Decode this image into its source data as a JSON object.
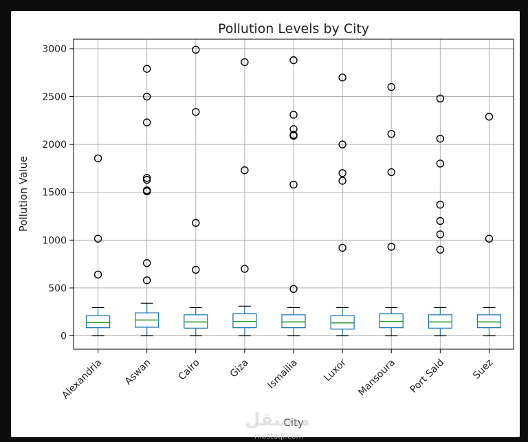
{
  "chart_data": {
    "type": "box",
    "title": "Pollution Levels by City",
    "xlabel": "City",
    "ylabel": "Pollution Value",
    "ylim": [
      -140,
      3100
    ],
    "yticks": [
      0,
      500,
      1000,
      1500,
      2000,
      2500,
      3000
    ],
    "grid": true,
    "categories": [
      "Alexandria",
      "Aswan",
      "Cairo",
      "Giza",
      "Ismailia",
      "Luxor",
      "Mansoura",
      "Port Said",
      "Suez"
    ],
    "boxes": [
      {
        "city": "Alexandria",
        "min": 0,
        "q1": 85,
        "median": 140,
        "q3": 210,
        "max": 295,
        "outliers": [
          1855,
          1015,
          640
        ]
      },
      {
        "city": "Aswan",
        "min": 0,
        "q1": 90,
        "median": 165,
        "q3": 240,
        "max": 340,
        "outliers": [
          2790,
          2500,
          2230,
          1650,
          1630,
          1520,
          1510,
          760,
          580
        ]
      },
      {
        "city": "Cairo",
        "min": 0,
        "q1": 80,
        "median": 145,
        "q3": 220,
        "max": 295,
        "outliers": [
          2990,
          2340,
          1180,
          690
        ]
      },
      {
        "city": "Giza",
        "min": 0,
        "q1": 85,
        "median": 150,
        "q3": 230,
        "max": 310,
        "outliers": [
          2860,
          1730,
          700
        ]
      },
      {
        "city": "Ismailia",
        "min": 0,
        "q1": 85,
        "median": 145,
        "q3": 220,
        "max": 295,
        "outliers": [
          2880,
          2310,
          2160,
          2100,
          2090,
          1580,
          490
        ]
      },
      {
        "city": "Luxor",
        "min": 0,
        "q1": 70,
        "median": 135,
        "q3": 210,
        "max": 295,
        "outliers": [
          2700,
          2000,
          1700,
          1620,
          920
        ]
      },
      {
        "city": "Mansoura",
        "min": 0,
        "q1": 85,
        "median": 150,
        "q3": 230,
        "max": 295,
        "outliers": [
          2600,
          2110,
          1710,
          930
        ]
      },
      {
        "city": "Port Said",
        "min": 0,
        "q1": 80,
        "median": 145,
        "q3": 220,
        "max": 295,
        "outliers": [
          2480,
          2060,
          1800,
          1370,
          1200,
          1060,
          900
        ]
      },
      {
        "city": "Suez",
        "min": 0,
        "q1": 85,
        "median": 145,
        "q3": 220,
        "max": 295,
        "outliers": [
          2290,
          1015
        ]
      }
    ],
    "colors": {
      "box": "#1f77b4",
      "median": "#2ca02c",
      "grid": "#b0b0b0",
      "outlier": "#000000"
    }
  },
  "watermark": {
    "name": "مستقل",
    "url": "mostaql.com"
  }
}
